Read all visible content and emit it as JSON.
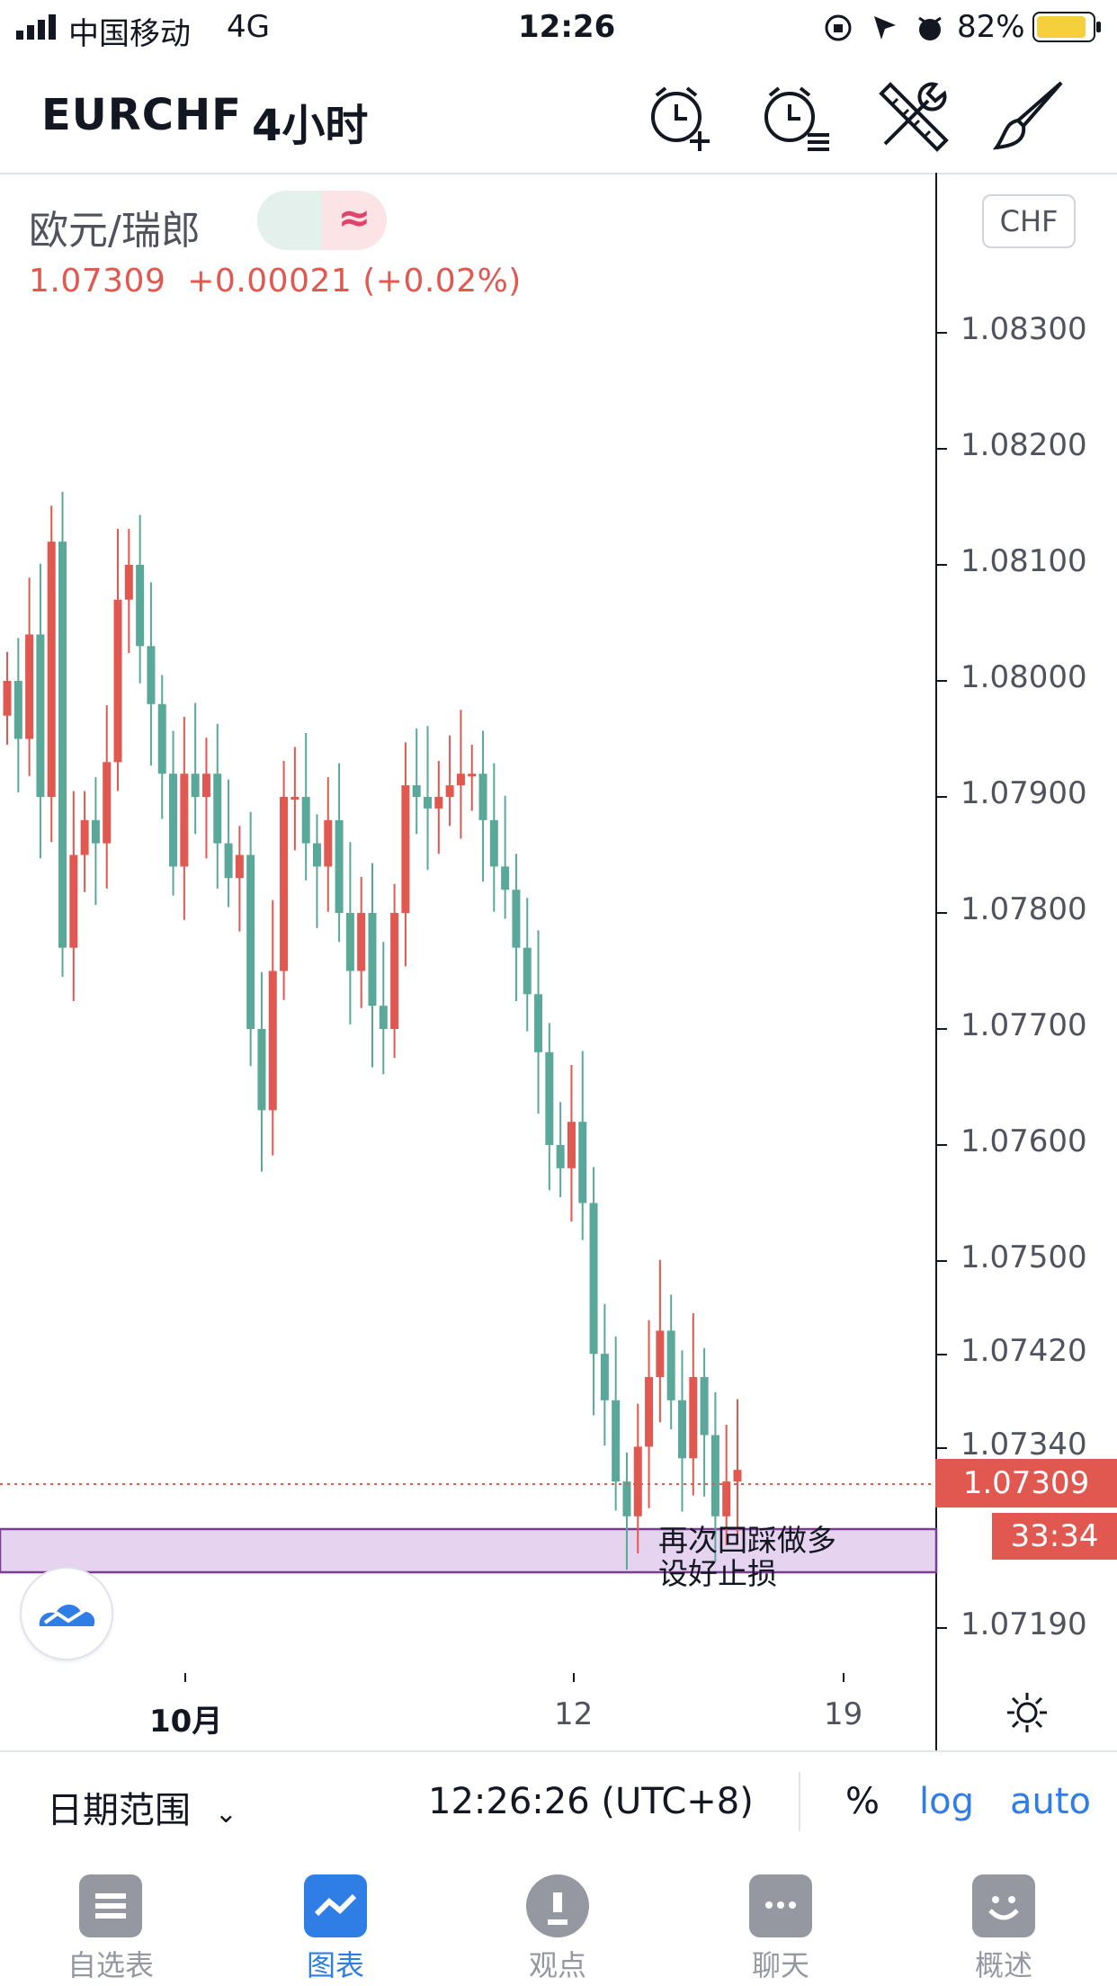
{
  "status_bar": {
    "carrier": "中国移动",
    "network": "4G",
    "time": "12:26",
    "battery": "82%"
  },
  "header": {
    "symbol": "EURCHF",
    "interval": "4小时",
    "icons": [
      "alarm-add-icon",
      "alarm-list-icon",
      "tools-icon",
      "brush-icon"
    ]
  },
  "legend": {
    "name": "欧元/瑞郎",
    "toggle_symbol": "≈",
    "price_line": "1.07309  +0.00021 (+0.02%)"
  },
  "axis": {
    "currency": "CHF",
    "y_labels": [
      "1.08300",
      "1.08200",
      "1.08100",
      "1.08000",
      "1.07900",
      "1.07800",
      "1.07700",
      "1.07600",
      "1.07500",
      "1.07420",
      "1.07340",
      "1.07190"
    ],
    "x_labels": [
      "10月",
      "12",
      "19"
    ],
    "last_price": "1.07309",
    "countdown": "33:34"
  },
  "annotation": {
    "line1": "再次回踩做多",
    "line2": "设好止损"
  },
  "controls": {
    "date_range": "日期范围",
    "clock": "12:26:26 (UTC+8)",
    "percent": "%",
    "log": "log",
    "auto": "auto"
  },
  "tabs": [
    {
      "label": "自选表",
      "icon": "watchlist-icon",
      "active": false
    },
    {
      "label": "图表",
      "icon": "chart-icon",
      "active": true
    },
    {
      "label": "观点",
      "icon": "ideas-icon",
      "active": false
    },
    {
      "label": "聊天",
      "icon": "chat-icon",
      "active": false
    },
    {
      "label": "概述",
      "icon": "overview-icon",
      "active": false
    }
  ],
  "colors": {
    "up": "#e0584f",
    "down": "#5aa89a",
    "accent": "#2f7ee5",
    "zone_fill": "#e6d3ef",
    "zone_border": "#7a3d96"
  }
}
